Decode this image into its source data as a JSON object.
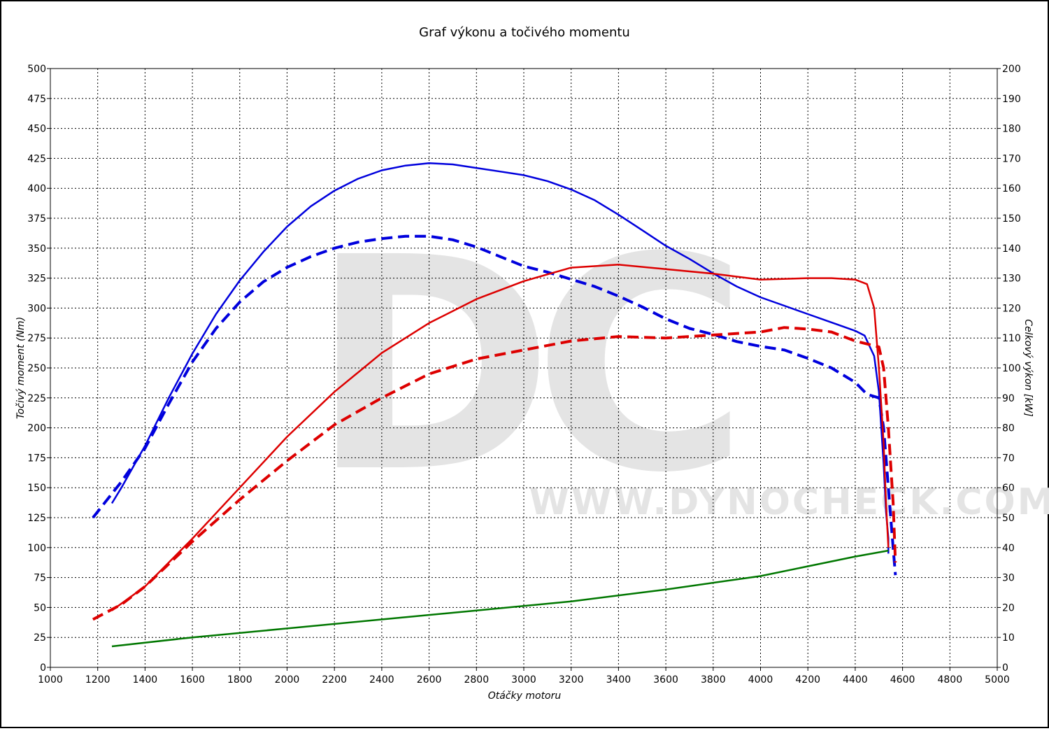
{
  "chart_data": {
    "type": "line",
    "title": "Graf výkonu a točivého momentu",
    "xlabel": "Otáčky motoru",
    "ylabel": "Točivý moment (Nm)",
    "y2label": "Celkový výkon [kW]",
    "watermark": [
      "DC",
      "WWW.DYNOCHECK.COM"
    ],
    "grid": true,
    "xlim": [
      1000,
      5000
    ],
    "xticks": [
      1000,
      1200,
      1400,
      1600,
      1800,
      2000,
      2200,
      2400,
      2600,
      2800,
      3000,
      3200,
      3400,
      3600,
      3800,
      4000,
      4200,
      4400,
      4600,
      4800,
      5000
    ],
    "ylim": [
      0,
      500
    ],
    "yticks": [
      0,
      25,
      50,
      75,
      100,
      125,
      150,
      175,
      200,
      225,
      250,
      275,
      300,
      325,
      350,
      375,
      400,
      425,
      450,
      475,
      500
    ],
    "y2lim": [
      0,
      200
    ],
    "y2ticks": [
      0,
      10,
      20,
      30,
      40,
      50,
      60,
      70,
      80,
      90,
      100,
      110,
      120,
      130,
      140,
      150,
      160,
      170,
      180,
      190,
      200
    ],
    "series": [
      {
        "color": "#0000dd",
        "dash": false,
        "axis": "y",
        "x": [
          1260,
          1300,
          1400,
          1500,
          1600,
          1700,
          1800,
          1900,
          2000,
          2100,
          2200,
          2300,
          2400,
          2500,
          2600,
          2700,
          2800,
          2900,
          3000,
          3100,
          3200,
          3300,
          3400,
          3500,
          3600,
          3700,
          3800,
          3900,
          4000,
          4100,
          4200,
          4300,
          4400,
          4440,
          4480,
          4500,
          4520,
          4530,
          4540,
          4540
        ],
        "values": [
          137,
          150,
          185,
          225,
          262,
          295,
          323,
          347,
          368,
          385,
          398,
          408,
          415,
          419,
          421,
          420,
          417,
          414,
          411,
          406,
          399,
          390,
          378,
          365,
          352,
          341,
          329,
          318,
          309,
          302,
          295,
          288,
          281,
          277,
          260,
          230,
          170,
          130,
          108,
          95
        ]
      },
      {
        "color": "#0000dd",
        "dash": true,
        "axis": "y",
        "x": [
          1180,
          1300,
          1400,
          1500,
          1600,
          1700,
          1800,
          1900,
          2000,
          2100,
          2200,
          2300,
          2400,
          2500,
          2600,
          2700,
          2800,
          2900,
          3000,
          3100,
          3200,
          3300,
          3400,
          3500,
          3600,
          3700,
          3800,
          3900,
          4000,
          4100,
          4200,
          4300,
          4400,
          4450,
          4500,
          4520,
          4540,
          4560,
          4570
        ],
        "values": [
          125,
          155,
          183,
          220,
          255,
          283,
          305,
          322,
          334,
          343,
          350,
          355,
          358,
          360,
          360,
          357,
          351,
          343,
          335,
          330,
          324,
          318,
          310,
          301,
          291,
          283,
          278,
          272,
          268,
          265,
          258,
          250,
          238,
          228,
          225,
          200,
          150,
          100,
          77
        ]
      },
      {
        "color": "#dd0000",
        "dash": false,
        "axis": "y2",
        "x": [
          1260,
          1400,
          1600,
          1800,
          2000,
          2200,
          2400,
          2600,
          2800,
          3000,
          3200,
          3400,
          3600,
          3800,
          4000,
          4200,
          4300,
          4400,
          4450,
          4480,
          4500,
          4520,
          4530,
          4540
        ],
        "values": [
          19,
          27,
          43,
          60,
          77,
          92,
          105,
          115,
          123,
          129,
          133.5,
          134.5,
          133,
          131.5,
          129.5,
          130,
          130,
          129.5,
          128,
          120,
          100,
          75,
          55,
          40
        ]
      },
      {
        "color": "#dd0000",
        "dash": true,
        "axis": "y2",
        "x": [
          1180,
          1300,
          1400,
          1600,
          1800,
          2000,
          2200,
          2400,
          2600,
          2800,
          3000,
          3200,
          3400,
          3600,
          3800,
          4000,
          4100,
          4200,
          4300,
          4400,
          4500,
          4520,
          4540,
          4560,
          4570
        ],
        "values": [
          16,
          21,
          27,
          42,
          56,
          69,
          81,
          90,
          98,
          103,
          106,
          109,
          110.5,
          110,
          111,
          112,
          113.5,
          113,
          112,
          109,
          107,
          100,
          80,
          55,
          35
        ]
      },
      {
        "color": "#007700",
        "dash": false,
        "axis": "y2",
        "x": [
          1260,
          1600,
          2000,
          2400,
          2800,
          3200,
          3600,
          4000,
          4400,
          4540
        ],
        "values": [
          7,
          10,
          13,
          16,
          19,
          22,
          26,
          30.5,
          37,
          39
        ]
      }
    ]
  }
}
